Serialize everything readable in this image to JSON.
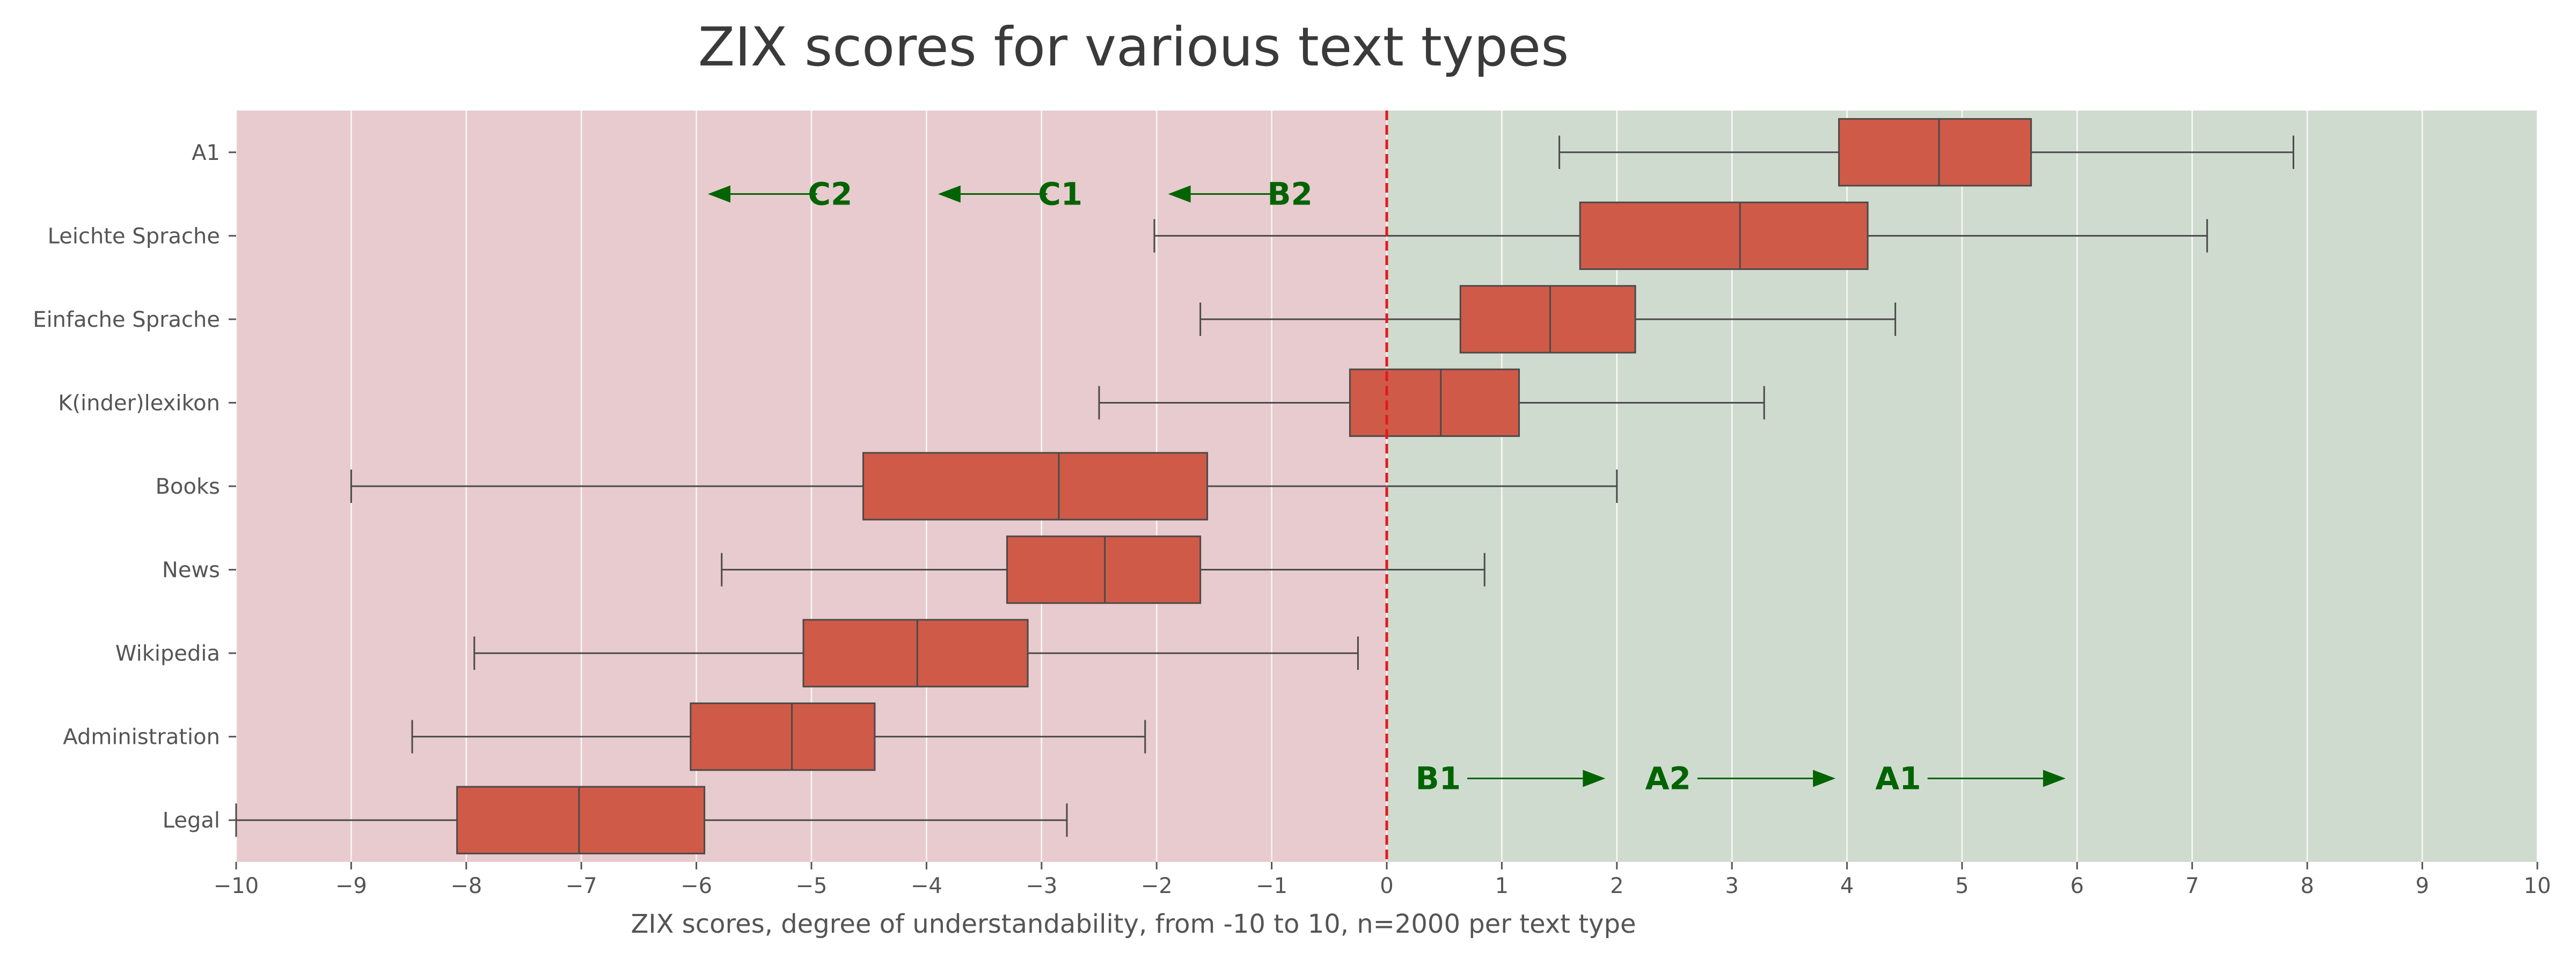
{
  "chart_data": {
    "type": "boxplot",
    "title": "ZIX scores for various text types",
    "xlabel": "ZIX scores, degree of understandability, from -10 to 10, n=2000 per text type",
    "ylabel": "",
    "xlim": [
      -10,
      10
    ],
    "xticks": [
      "−10",
      "−9",
      "−8",
      "−7",
      "−6",
      "−5",
      "−4",
      "−3",
      "−2",
      "−1",
      "0",
      "1",
      "2",
      "3",
      "4",
      "5",
      "6",
      "7",
      "8",
      "9",
      "10"
    ],
    "grid": true,
    "orientation": "horizontal",
    "categories": [
      "A1",
      "Leichte Sprache",
      "Einfache Sprache",
      "K(inder)lexikon",
      "Books",
      "News",
      "Wikipedia",
      "Administration",
      "Legal"
    ],
    "boxes": [
      {
        "label": "A1",
        "whislo": 1.5,
        "q1": 3.93,
        "med": 4.8,
        "q3": 5.6,
        "whishi": 7.88
      },
      {
        "label": "Leichte Sprache",
        "whislo": -2.02,
        "q1": 1.68,
        "med": 3.07,
        "q3": 4.18,
        "whishi": 7.13
      },
      {
        "label": "Einfache Sprache",
        "whislo": -1.62,
        "q1": 0.64,
        "med": 1.42,
        "q3": 2.16,
        "whishi": 4.42
      },
      {
        "label": "K(inder)lexikon",
        "whislo": -2.5,
        "q1": -0.32,
        "med": 0.47,
        "q3": 1.15,
        "whishi": 3.28
      },
      {
        "label": "Books",
        "whislo": -9.0,
        "q1": -4.55,
        "med": -2.85,
        "q3": -1.56,
        "whishi": 2.0
      },
      {
        "label": "News",
        "whislo": -5.78,
        "q1": -3.3,
        "med": -2.45,
        "q3": -1.62,
        "whishi": 0.85
      },
      {
        "label": "Wikipedia",
        "whislo": -7.93,
        "q1": -5.07,
        "med": -4.08,
        "q3": -3.12,
        "whishi": -0.25
      },
      {
        "label": "Administration",
        "whislo": -8.47,
        "q1": -6.05,
        "med": -5.17,
        "q3": -4.45,
        "whishi": -2.1
      },
      {
        "label": "Legal",
        "whislo": -10.0,
        "q1": -8.08,
        "med": -7.02,
        "q3": -5.93,
        "whishi": -2.78
      }
    ],
    "reference_line": {
      "x": 0,
      "color": "#e3191c",
      "style": "dashed"
    },
    "regions": [
      {
        "from": -10,
        "to": 0,
        "color": "#e8cbce"
      },
      {
        "from": 0,
        "to": 10,
        "color": "#d0dbd0"
      }
    ],
    "level_annotations": {
      "upper": [
        {
          "label": "B2",
          "arrow_from": -0.7,
          "arrow_to": -1.9
        },
        {
          "label": "C1",
          "arrow_from": -2.7,
          "arrow_to": -3.9
        },
        {
          "label": "C2",
          "arrow_from": -4.7,
          "arrow_to": -5.9
        }
      ],
      "lower": [
        {
          "label": "B1",
          "arrow_from": 0.7,
          "arrow_to": 1.9
        },
        {
          "label": "A2",
          "arrow_from": 2.7,
          "arrow_to": 3.9
        },
        {
          "label": "A1",
          "arrow_from": 4.7,
          "arrow_to": 5.9
        }
      ],
      "color": "#006400"
    },
    "box_color": "#d05a48",
    "line_color": "#4a4a4a"
  }
}
